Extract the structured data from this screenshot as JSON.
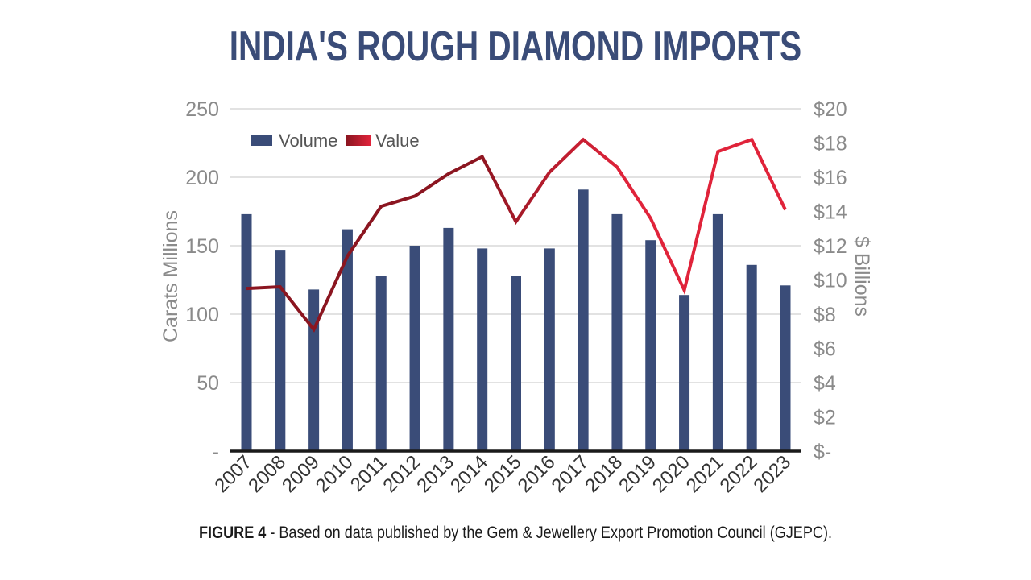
{
  "title": "INDIA'S ROUGH DIAMOND IMPORTS",
  "caption": {
    "label": "FIGURE 4",
    "text": " - Based on data published by the Gem & Jewellery Export Promotion Council (GJEPC)."
  },
  "colors": {
    "bar": "#3a4c78",
    "line_dark": "#8b1520",
    "line_bright": "#e0233a",
    "title": "#3a4c78",
    "grid": "#d9d9d9",
    "axis": "#1a1a1a"
  },
  "chart_data": {
    "type": "bar",
    "title": "INDIA'S ROUGH DIAMOND IMPORTS",
    "categories": [
      "2007",
      "2008",
      "2009",
      "2010",
      "2011",
      "2012",
      "2013",
      "2014",
      "2015",
      "2016",
      "2017",
      "2018",
      "2019",
      "2020",
      "2021",
      "2022",
      "2023"
    ],
    "series": [
      {
        "name": "Volume",
        "type": "bar",
        "axis": "left",
        "values": [
          173,
          147,
          118,
          162,
          128,
          150,
          163,
          148,
          128,
          148,
          191,
          173,
          154,
          114,
          173,
          136,
          121
        ]
      },
      {
        "name": "Value",
        "type": "line",
        "axis": "right",
        "values": [
          9.5,
          9.6,
          7.1,
          11.4,
          14.3,
          14.9,
          16.2,
          17.2,
          13.4,
          16.3,
          18.2,
          16.6,
          13.6,
          9.4,
          17.5,
          18.2,
          14.1
        ]
      }
    ],
    "ylabel": "Carats Millions",
    "y2label": "$ Billions",
    "ylim": [
      0,
      250
    ],
    "y2lim": [
      0,
      20
    ],
    "yticks": [
      "-",
      "50",
      "100",
      "150",
      "200",
      "250"
    ],
    "y2ticks": [
      "$-",
      "$2",
      "$4",
      "$6",
      "$8",
      "$10",
      "$12",
      "$14",
      "$16",
      "$18",
      "$20"
    ],
    "grid": true,
    "legend_position": "top-left"
  }
}
